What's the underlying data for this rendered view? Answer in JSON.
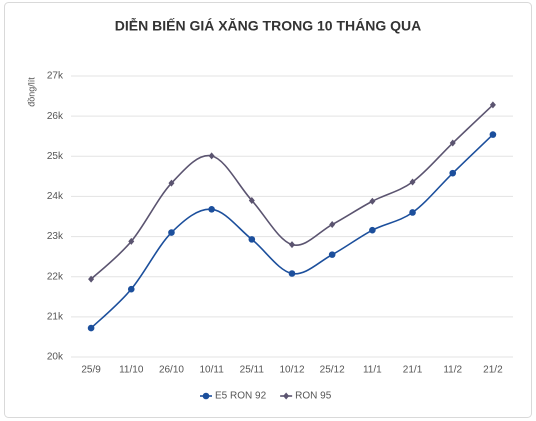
{
  "chart_data": {
    "type": "line",
    "title": "DIỄN BIẾN GIÁ XĂNG TRONG 10 THÁNG QUA",
    "y_label": "đồng/lít",
    "categories": [
      "25/9",
      "11/10",
      "26/10",
      "10/11",
      "25/11",
      "10/12",
      "25/12",
      "11/1",
      "21/1",
      "11/2",
      "21/2"
    ],
    "series": [
      {
        "name": "E5 RON 92",
        "color": "#1c4f9c",
        "marker": "circle",
        "values": [
          20720,
          21690,
          23100,
          23680,
          22930,
          22080,
          22550,
          23160,
          23600,
          24580,
          25540
        ]
      },
      {
        "name": "RON 95",
        "color": "#5b5470",
        "marker": "diamond",
        "values": [
          21940,
          22880,
          24330,
          25010,
          23900,
          22800,
          23300,
          23880,
          24360,
          25330,
          26280
        ]
      }
    ],
    "ylim": [
      20000,
      27000
    ],
    "yticks": [
      {
        "value": 20000,
        "label": "20k"
      },
      {
        "value": 21000,
        "label": "21k"
      },
      {
        "value": 22000,
        "label": "22k"
      },
      {
        "value": 23000,
        "label": "23k"
      },
      {
        "value": 24000,
        "label": "24k"
      },
      {
        "value": 25000,
        "label": "25k"
      },
      {
        "value": 26000,
        "label": "26k"
      },
      {
        "value": 27000,
        "label": "27k"
      }
    ],
    "grid": true,
    "smooth": true,
    "legend": "bottom"
  }
}
